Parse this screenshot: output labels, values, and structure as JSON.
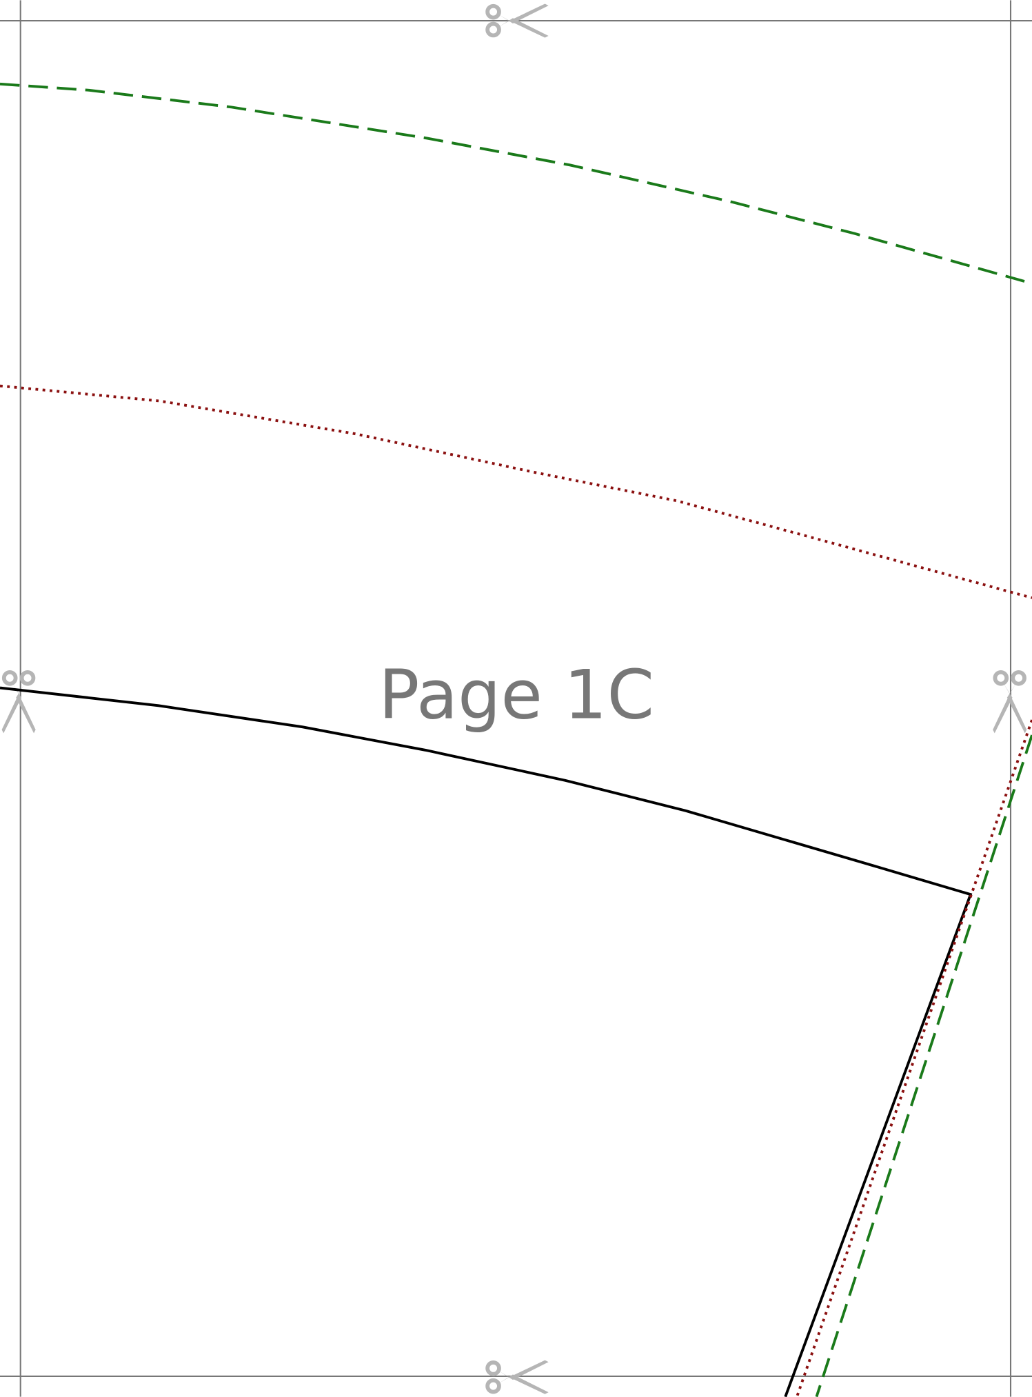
{
  "page_label": "Page 1C"
}
